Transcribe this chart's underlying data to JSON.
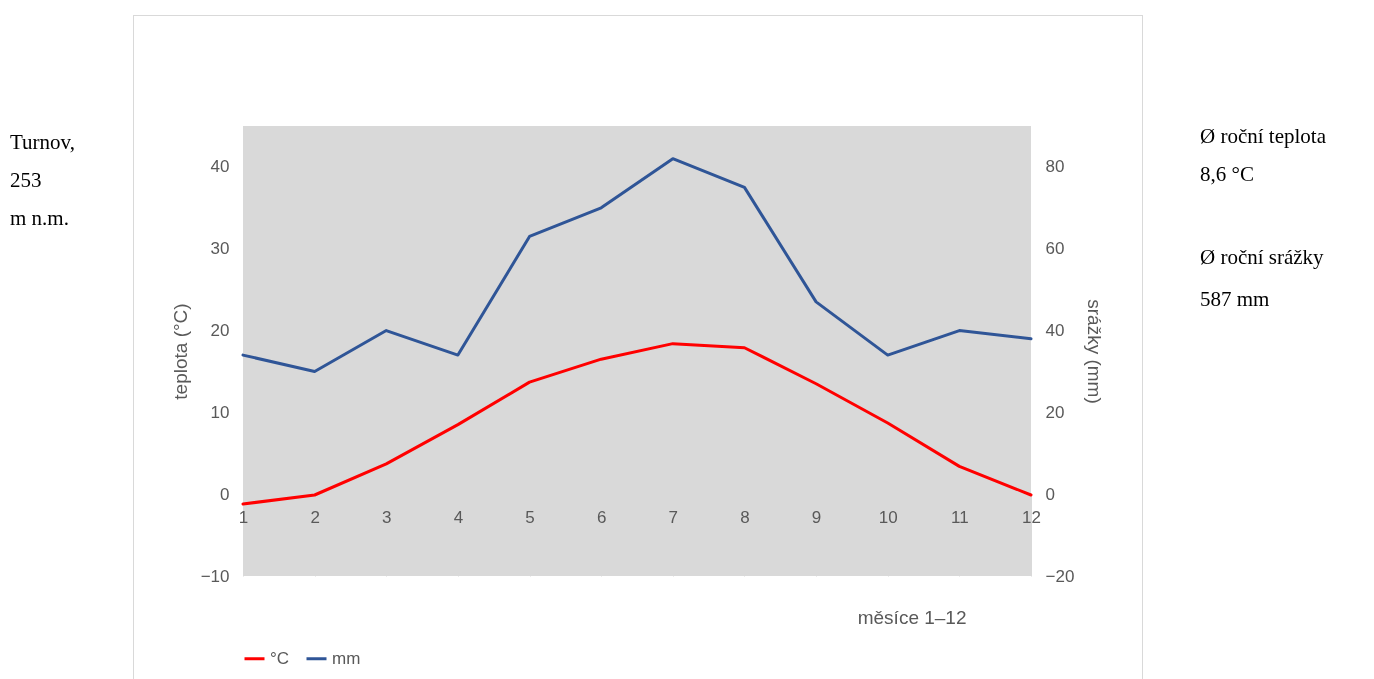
{
  "chart_data": {
    "type": "line",
    "xlabel": "měsíce 1–12",
    "ylabel": "teplota (°C)",
    "y2label": "srážky (mm)",
    "x": [
      1,
      2,
      3,
      4,
      5,
      6,
      7,
      8,
      9,
      10,
      11,
      12
    ],
    "series": [
      {
        "name": "°C",
        "color": "#ff0000",
        "values": [
          -1.2,
          -0.1,
          3.7,
          8.5,
          13.7,
          16.5,
          18.4,
          17.9,
          13.5,
          8.7,
          3.4,
          -0.1
        ]
      },
      {
        "name": "mm",
        "color": "#2f5597",
        "axis": "y2",
        "values": [
          34,
          30,
          40,
          34,
          63,
          70,
          82,
          75,
          47,
          34,
          40,
          38
        ]
      }
    ],
    "xlim": [
      1,
      12
    ],
    "xticks": [
      1,
      2,
      3,
      4,
      5,
      6,
      7,
      8,
      9,
      10,
      11,
      12
    ],
    "ylim": [
      -10,
      45
    ],
    "yticks": [
      -10,
      0,
      10,
      20,
      30,
      40
    ],
    "y2lim": [
      -20,
      90
    ],
    "y2ticks": [
      -20,
      0,
      20,
      40,
      60,
      80
    ],
    "grid": false,
    "legend": "bottom",
    "marker": "none",
    "line_style": "solid",
    "annotations": [
      "Turnov,\n253\nm n.m.",
      "Ø roční teplota\n8,6 °C",
      "Ø roční srážky\n587 mm"
    ]
  }
}
